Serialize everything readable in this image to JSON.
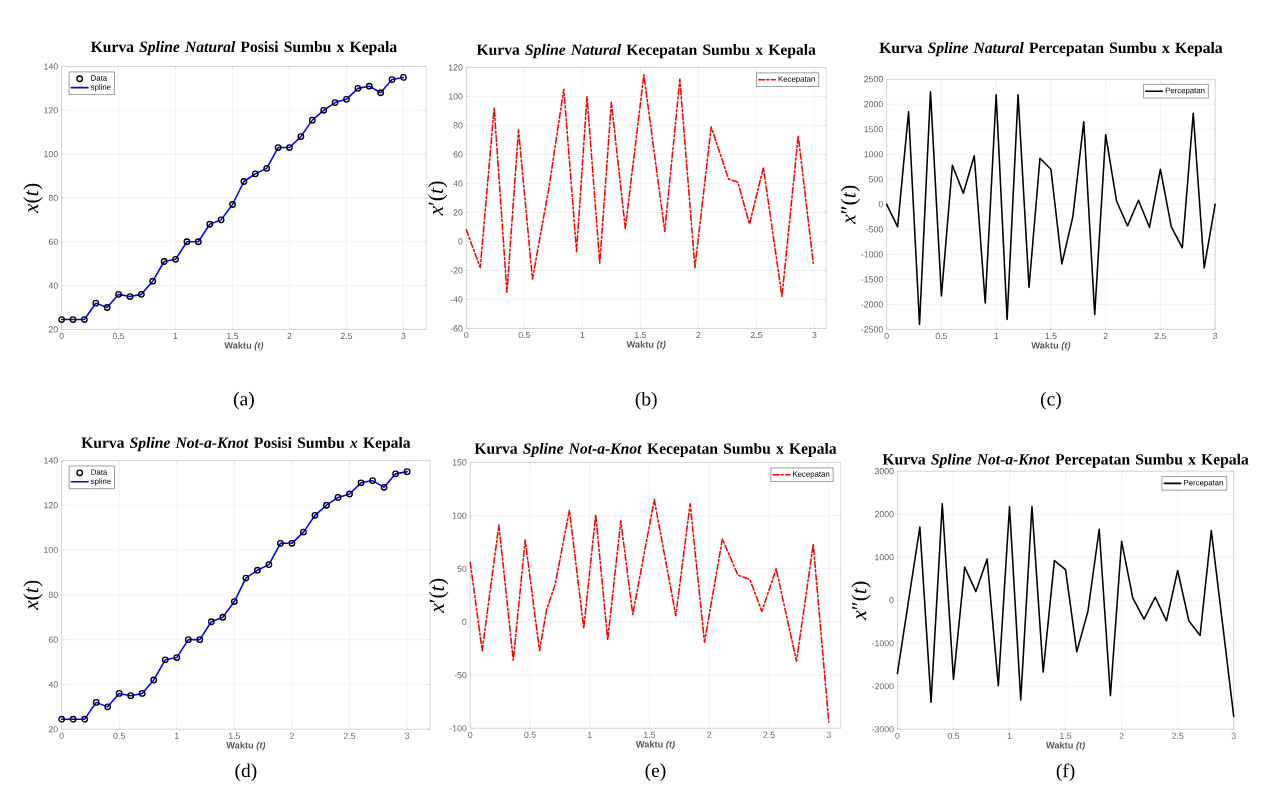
{
  "chart_data": [
    {
      "type": "line",
      "title": "Kurva *Spline Natural* Posisi Sumbu x Kepala",
      "xlabel": "Waktu *(t)*",
      "ylabel": "*x*(*t*)",
      "annotations": [
        "(a)"
      ],
      "x": [
        0,
        0.1,
        0.2,
        0.3,
        0.4,
        0.5,
        0.6,
        0.7,
        0.8,
        0.9,
        1.0,
        1.1,
        1.2,
        1.3,
        1.4,
        1.5,
        1.6,
        1.7,
        1.8,
        1.9,
        2.0,
        2.1,
        2.2,
        2.3,
        2.4,
        2.5,
        2.6,
        2.7,
        2.8,
        2.9,
        3.0
      ],
      "series": [
        {
          "name": "Data",
          "type": "scatter",
          "marker": "circle",
          "color": "#000000",
          "values": [
            24.5,
            24.5,
            24.5,
            32,
            30,
            36,
            35,
            36,
            42,
            51,
            52,
            60,
            60,
            68,
            70,
            77,
            87.5,
            91,
            93.5,
            103,
            103,
            108,
            115.5,
            120,
            123.5,
            125,
            130,
            131,
            128,
            134,
            135
          ]
        },
        {
          "name": "spline",
          "type": "line",
          "color": "#0000ff",
          "values": [
            24.5,
            24.5,
            24.5,
            32,
            30,
            36,
            35,
            36,
            42,
            51,
            52,
            60,
            60,
            68,
            70,
            77,
            87.5,
            91,
            93.5,
            103,
            103,
            108,
            115.5,
            120,
            123.5,
            125,
            130,
            131,
            128,
            134,
            135
          ]
        }
      ],
      "xlim": [
        0,
        3.2
      ],
      "ylim": [
        20,
        140
      ],
      "xticks": [
        0,
        0.5,
        1,
        1.5,
        2,
        2.5,
        3
      ],
      "yticks": [
        20,
        40,
        60,
        80,
        100,
        120,
        140
      ],
      "grid": true,
      "legend": "top left"
    },
    {
      "type": "line",
      "title": "Kurva *Spline Natural* Kecepatan Sumbu x Kepala",
      "xlabel": "Waktu *(t)*",
      "ylabel": "*x*′(*t*)",
      "annotations": [
        "(b)"
      ],
      "x": [
        0,
        0.12,
        0.24,
        0.35,
        0.45,
        0.57,
        0.66,
        0.71,
        0.84,
        0.95,
        1.04,
        1.15,
        1.25,
        1.37,
        1.53,
        1.71,
        1.84,
        1.97,
        2.11,
        2.26,
        2.34,
        2.44,
        2.56,
        2.72,
        2.86,
        2.99
      ],
      "series": [
        {
          "name": "Kecepatan",
          "color": "#ff0000",
          "values": [
            8,
            -18,
            92,
            -35,
            77,
            -26,
            14,
            36,
            105,
            -7,
            100,
            -15,
            96,
            9,
            115,
            7,
            112,
            -18,
            79,
            43,
            41,
            12,
            51,
            -38,
            73,
            -15
          ]
        }
      ],
      "line_style": "dashed",
      "xlim": [
        0,
        3.1
      ],
      "ylim": [
        -60,
        120
      ],
      "xticks": [
        0,
        0.5,
        1,
        1.5,
        2,
        2.5,
        3
      ],
      "yticks": [
        -60,
        -40,
        -20,
        0,
        20,
        40,
        60,
        80,
        100,
        120
      ],
      "grid": true,
      "legend": "top right"
    },
    {
      "type": "line",
      "title": "Kurva *Spline Natural* Percepatan Sumbu x Kepala",
      "xlabel": "Waktu *(t)*",
      "ylabel": "*x*″(*t*)",
      "annotations": [
        "(c)"
      ],
      "x": [
        0,
        0.1,
        0.2,
        0.3,
        0.4,
        0.5,
        0.6,
        0.7,
        0.8,
        0.9,
        1.0,
        1.1,
        1.2,
        1.3,
        1.4,
        1.5,
        1.6,
        1.7,
        1.8,
        1.9,
        2.0,
        2.1,
        2.2,
        2.3,
        2.4,
        2.5,
        2.6,
        2.7,
        2.8,
        2.9,
        3.0
      ],
      "series": [
        {
          "name": "Percepatan",
          "color": "#000000",
          "values": [
            0,
            -450,
            1850,
            -2400,
            2250,
            -1830,
            780,
            220,
            970,
            -1970,
            2190,
            -2300,
            2190,
            -1660,
            920,
            700,
            -1190,
            -250,
            1650,
            -2200,
            1390,
            60,
            -430,
            80,
            -460,
            700,
            -450,
            -870,
            1820,
            -1270,
            0
          ]
        }
      ],
      "xlim": [
        0,
        3
      ],
      "ylim": [
        -2500,
        2500
      ],
      "xticks": [
        0,
        0.5,
        1,
        1.5,
        2,
        2.5,
        3
      ],
      "yticks": [
        -2500,
        -2000,
        -1500,
        -1000,
        -500,
        0,
        500,
        1000,
        1500,
        2000,
        2500
      ],
      "grid": true,
      "legend": "top right"
    },
    {
      "type": "line",
      "title": "Kurva *Spline Not-a-Knot* Posisi Sumbu *x* Kepala",
      "xlabel": "Waktu *(t)*",
      "ylabel": "*x*(*t*)",
      "annotations": [
        "(d)"
      ],
      "x": [
        0,
        0.1,
        0.2,
        0.3,
        0.4,
        0.5,
        0.6,
        0.7,
        0.8,
        0.9,
        1.0,
        1.1,
        1.2,
        1.3,
        1.4,
        1.5,
        1.6,
        1.7,
        1.8,
        1.9,
        2.0,
        2.1,
        2.2,
        2.3,
        2.4,
        2.5,
        2.6,
        2.7,
        2.8,
        2.9,
        3.0
      ],
      "series": [
        {
          "name": "Data",
          "type": "scatter",
          "marker": "circle",
          "color": "#000000",
          "values": [
            24.5,
            24.5,
            24.5,
            32,
            30,
            36,
            35,
            36,
            42,
            51,
            52,
            60,
            60,
            68,
            70,
            77,
            87.5,
            91,
            93.5,
            103,
            103,
            108,
            115.5,
            120,
            123.5,
            125,
            130,
            131,
            128,
            134,
            135
          ]
        },
        {
          "name": "spline",
          "type": "line",
          "color": "#0000ff",
          "values": [
            24.5,
            24.5,
            24.5,
            32,
            30,
            36,
            35,
            36,
            42,
            51,
            52,
            60,
            60,
            68,
            70,
            77,
            87.5,
            91,
            93.5,
            103,
            103,
            108,
            115.5,
            120,
            123.5,
            125,
            130,
            131,
            128,
            134,
            135
          ]
        }
      ],
      "xlim": [
        0,
        3.2
      ],
      "ylim": [
        20,
        140
      ],
      "xticks": [
        0,
        0.5,
        1,
        1.5,
        2,
        2.5,
        3
      ],
      "yticks": [
        20,
        40,
        60,
        80,
        100,
        120,
        140
      ],
      "grid": true,
      "legend": "top left"
    },
    {
      "type": "line",
      "title": "Kurva *Spline Not-a-Knot* Kecepatan Sumbu x Kepala",
      "xlabel": "Waktu *(t)*",
      "ylabel": "*x*′(*t*)",
      "annotations": [
        "(e)"
      ],
      "x": [
        0,
        0.1,
        0.24,
        0.36,
        0.46,
        0.58,
        0.64,
        0.71,
        0.83,
        0.95,
        1.05,
        1.15,
        1.26,
        1.36,
        1.54,
        1.72,
        1.84,
        1.96,
        2.11,
        2.24,
        2.34,
        2.44,
        2.56,
        2.73,
        2.87,
        3.0
      ],
      "series": [
        {
          "name": "Kecepatan",
          "color": "#ff0000",
          "values": [
            56,
            -27,
            91,
            -36,
            77,
            -27,
            12,
            35,
            105,
            -6,
            101,
            -17,
            95,
            7,
            115,
            6,
            111,
            -19,
            78,
            44,
            40,
            10,
            50,
            -37,
            73,
            -94
          ]
        }
      ],
      "line_style": "dashed",
      "xlim": [
        0,
        3.1
      ],
      "ylim": [
        -100,
        150
      ],
      "xticks": [
        0,
        0.5,
        1,
        1.5,
        2,
        2.5,
        3
      ],
      "yticks": [
        -100,
        -50,
        0,
        50,
        100,
        150
      ],
      "grid": true,
      "legend": "top right"
    },
    {
      "type": "line",
      "title": "Kurva *Spline Not-a-Knot* Percepatan Sumbu x Kepala",
      "xlabel": "Waktu *(t)*",
      "ylabel": "*x*″(*t*)",
      "annotations": [
        "(f)"
      ],
      "x": [
        0,
        0.1,
        0.2,
        0.3,
        0.4,
        0.5,
        0.6,
        0.7,
        0.8,
        0.9,
        1.0,
        1.1,
        1.2,
        1.3,
        1.4,
        1.5,
        1.6,
        1.7,
        1.8,
        1.9,
        2.0,
        2.1,
        2.2,
        2.3,
        2.4,
        2.5,
        2.6,
        2.7,
        2.8,
        2.9,
        3.0
      ],
      "series": [
        {
          "name": "Percepatan",
          "color": "#000000",
          "values": [
            -1700,
            0,
            1700,
            -2370,
            2240,
            -1840,
            770,
            200,
            960,
            -1990,
            2180,
            -2320,
            2180,
            -1670,
            920,
            710,
            -1200,
            -250,
            1650,
            -2220,
            1370,
            50,
            -440,
            70,
            -480,
            690,
            -480,
            -820,
            1620,
            -540,
            -2700
          ]
        }
      ],
      "xlim": [
        0,
        3
      ],
      "ylim": [
        -3000,
        3000
      ],
      "xticks": [
        0,
        0.5,
        1,
        1.5,
        2,
        2.5,
        3
      ],
      "yticks": [
        -3000,
        -2000,
        -1000,
        0,
        1000,
        2000,
        3000
      ],
      "grid": true,
      "legend": "top right"
    }
  ]
}
